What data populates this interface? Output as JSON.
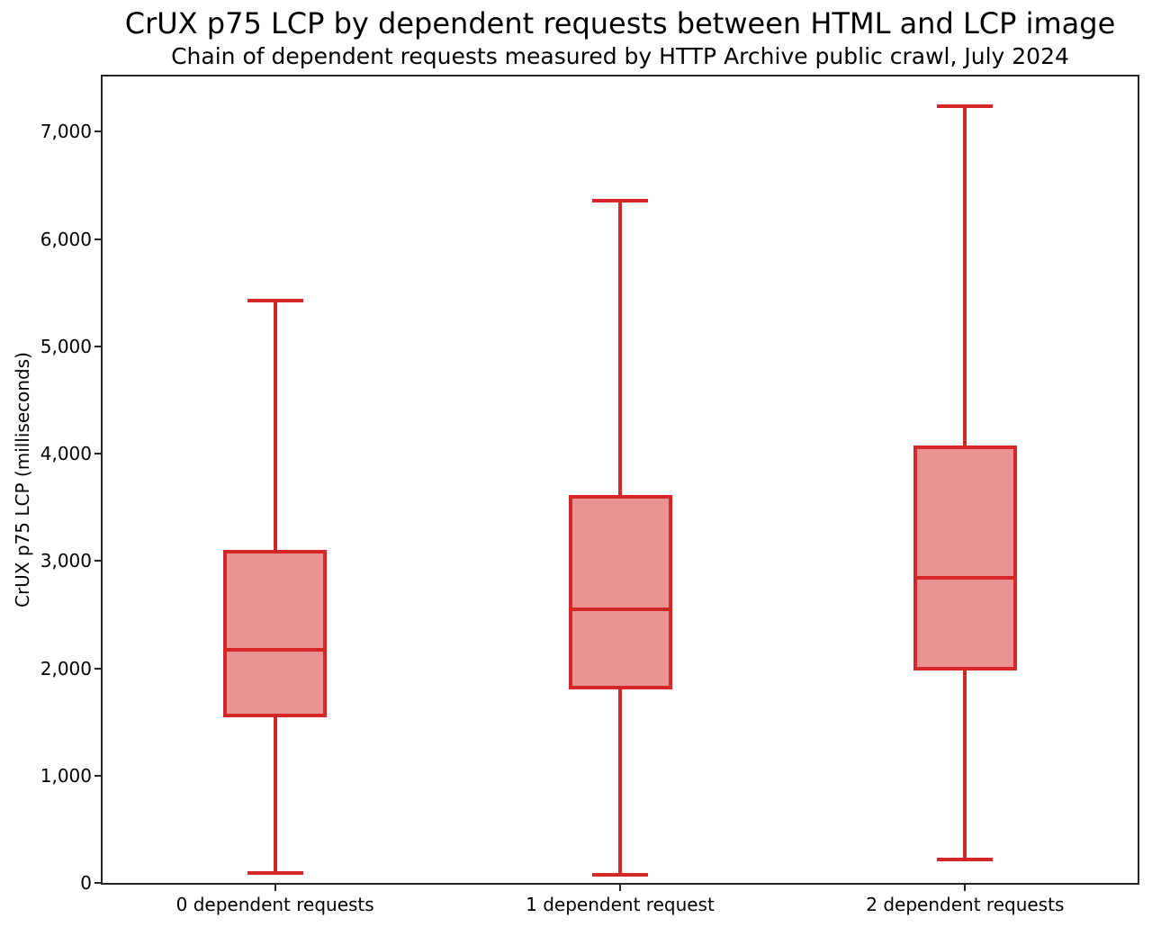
{
  "chart_data": {
    "type": "box",
    "title": "CrUX p75 LCP by dependent requests between HTML and LCP image",
    "subtitle": "Chain of dependent requests measured by HTTP Archive public crawl, July 2024",
    "xlabel": "",
    "ylabel": "CrUX p75 LCP (milliseconds)",
    "categories": [
      "0 dependent requests",
      "1 dependent request",
      "2 dependent requests"
    ],
    "series": [
      {
        "category": "0 dependent requests",
        "whisker_low": 90,
        "q1": 1540,
        "median": 2170,
        "q3": 3100,
        "whisker_high": 5430
      },
      {
        "category": "1 dependent request",
        "whisker_low": 75,
        "q1": 1800,
        "median": 2550,
        "q3": 3615,
        "whisker_high": 6360
      },
      {
        "category": "2 dependent requests",
        "whisker_low": 220,
        "q1": 1980,
        "median": 2840,
        "q3": 4075,
        "whisker_high": 7240
      }
    ],
    "ylim": [
      0,
      7515
    ],
    "yticks": [
      0,
      1000,
      2000,
      3000,
      4000,
      5000,
      6000,
      7000
    ],
    "ytick_labels": [
      "0",
      "1,000",
      "2,000",
      "3,000",
      "4,000",
      "5,000",
      "6,000",
      "7,000"
    ],
    "grid": false,
    "legend": "none",
    "colors": {
      "box_edge": "#d62728",
      "box_fill": "#ea9394",
      "axis": "#262626",
      "text": "#000000"
    }
  }
}
